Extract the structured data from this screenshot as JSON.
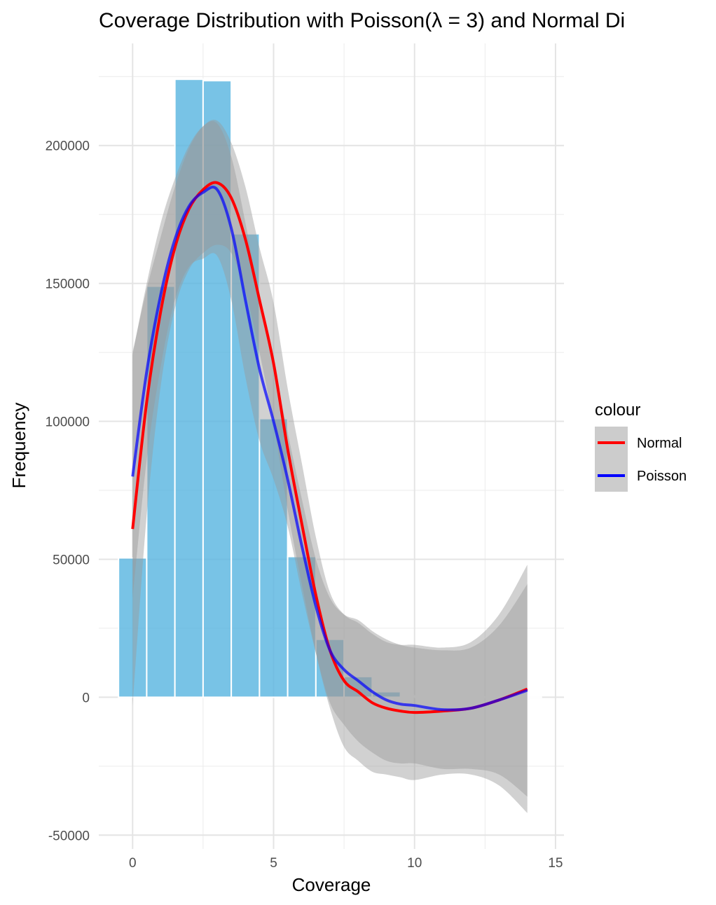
{
  "chart_data": {
    "type": "histogram_with_smooth",
    "title": "Coverage Distribution with Poisson(λ = 3) and Normal Di",
    "xlabel": "Coverage",
    "ylabel": "Frequency",
    "xlim": [
      -1.2,
      15.3
    ],
    "ylim": [
      -55000,
      237000
    ],
    "x_ticks": [
      0,
      5,
      10,
      15
    ],
    "y_ticks": [
      -50000,
      0,
      50000,
      100000,
      150000,
      200000
    ],
    "x_tick_labels": [
      "0",
      "5",
      "10",
      "15"
    ],
    "y_tick_labels": [
      "-50000",
      "0",
      "50000",
      "100000",
      "150000",
      "200000"
    ],
    "grid": true,
    "bars": {
      "color": "#56b4e0",
      "width": 1,
      "x": [
        0,
        1,
        2,
        3,
        4,
        5,
        6,
        7,
        8,
        9,
        10,
        11,
        12,
        13,
        14
      ],
      "values": [
        50500,
        149000,
        224000,
        223500,
        168000,
        101000,
        51000,
        21000,
        7500,
        2000,
        500,
        200,
        100,
        50,
        20
      ]
    },
    "legend": {
      "title": "colour",
      "position": "right",
      "entries": [
        {
          "name": "Normal",
          "color": "#ff0000"
        },
        {
          "name": "Poisson",
          "color": "#0000ff"
        }
      ]
    },
    "series": [
      {
        "name": "Normal",
        "color": "#ff0000",
        "x": [
          0,
          0.5,
          1,
          1.5,
          2,
          2.5,
          3,
          3.5,
          4,
          4.5,
          5,
          5.5,
          6,
          6.5,
          7,
          7.5,
          8,
          8.5,
          9,
          9.5,
          10,
          11,
          12,
          13,
          14
        ],
        "y": [
          61000,
          107000,
          140000,
          163000,
          177000,
          184000,
          186500,
          181000,
          166000,
          144000,
          121000,
          90000,
          63000,
          37000,
          17000,
          6000,
          2000,
          -2000,
          -4000,
          -5000,
          -5500,
          -5000,
          -4000,
          -1000,
          3000
        ],
        "band_upper": [
          125000,
          148000,
          167000,
          185000,
          199000,
          207000,
          209000,
          201000,
          185000,
          163000,
          143000,
          112000,
          85000,
          58000,
          38000,
          30000,
          27000,
          23000,
          20000,
          19000,
          19000,
          18000,
          20000,
          30000,
          48000
        ],
        "band_lower": [
          -3000,
          66000,
          113000,
          141000,
          155000,
          161000,
          164000,
          161000,
          147000,
          125000,
          99000,
          68000,
          41000,
          16000,
          -4000,
          -18000,
          -23000,
          -27000,
          -28000,
          -29000,
          -30000,
          -28000,
          -28000,
          -32000,
          -42000
        ]
      },
      {
        "name": "Poisson",
        "color": "#0000ff",
        "x": [
          0,
          0.5,
          1,
          1.5,
          2,
          2.5,
          3,
          3.5,
          4,
          4.5,
          5,
          5.5,
          6,
          6.5,
          7,
          7.5,
          8,
          8.5,
          9,
          9.5,
          10,
          11,
          12,
          13,
          14
        ],
        "y": [
          80000,
          118000,
          146000,
          166000,
          178000,
          183000,
          184000,
          170000,
          144000,
          119000,
          100000,
          79000,
          55000,
          33000,
          17000,
          10000,
          6000,
          2000,
          -1000,
          -2500,
          -3000,
          -4500,
          -4000,
          -1000,
          2500
        ],
        "band_upper": [
          124000,
          150000,
          172000,
          188000,
          200000,
          207000,
          208000,
          196000,
          172000,
          145000,
          121000,
          96000,
          72000,
          50000,
          36000,
          30000,
          28000,
          24000,
          21000,
          19000,
          18000,
          17000,
          18000,
          26000,
          41000
        ],
        "band_lower": [
          36000,
          86000,
          120000,
          144000,
          156000,
          159000,
          160000,
          144000,
          116000,
          93000,
          79000,
          62000,
          38000,
          16000,
          -2000,
          -10000,
          -16000,
          -20000,
          -23000,
          -24000,
          -24000,
          -26000,
          -26000,
          -28000,
          -36000
        ]
      }
    ]
  }
}
